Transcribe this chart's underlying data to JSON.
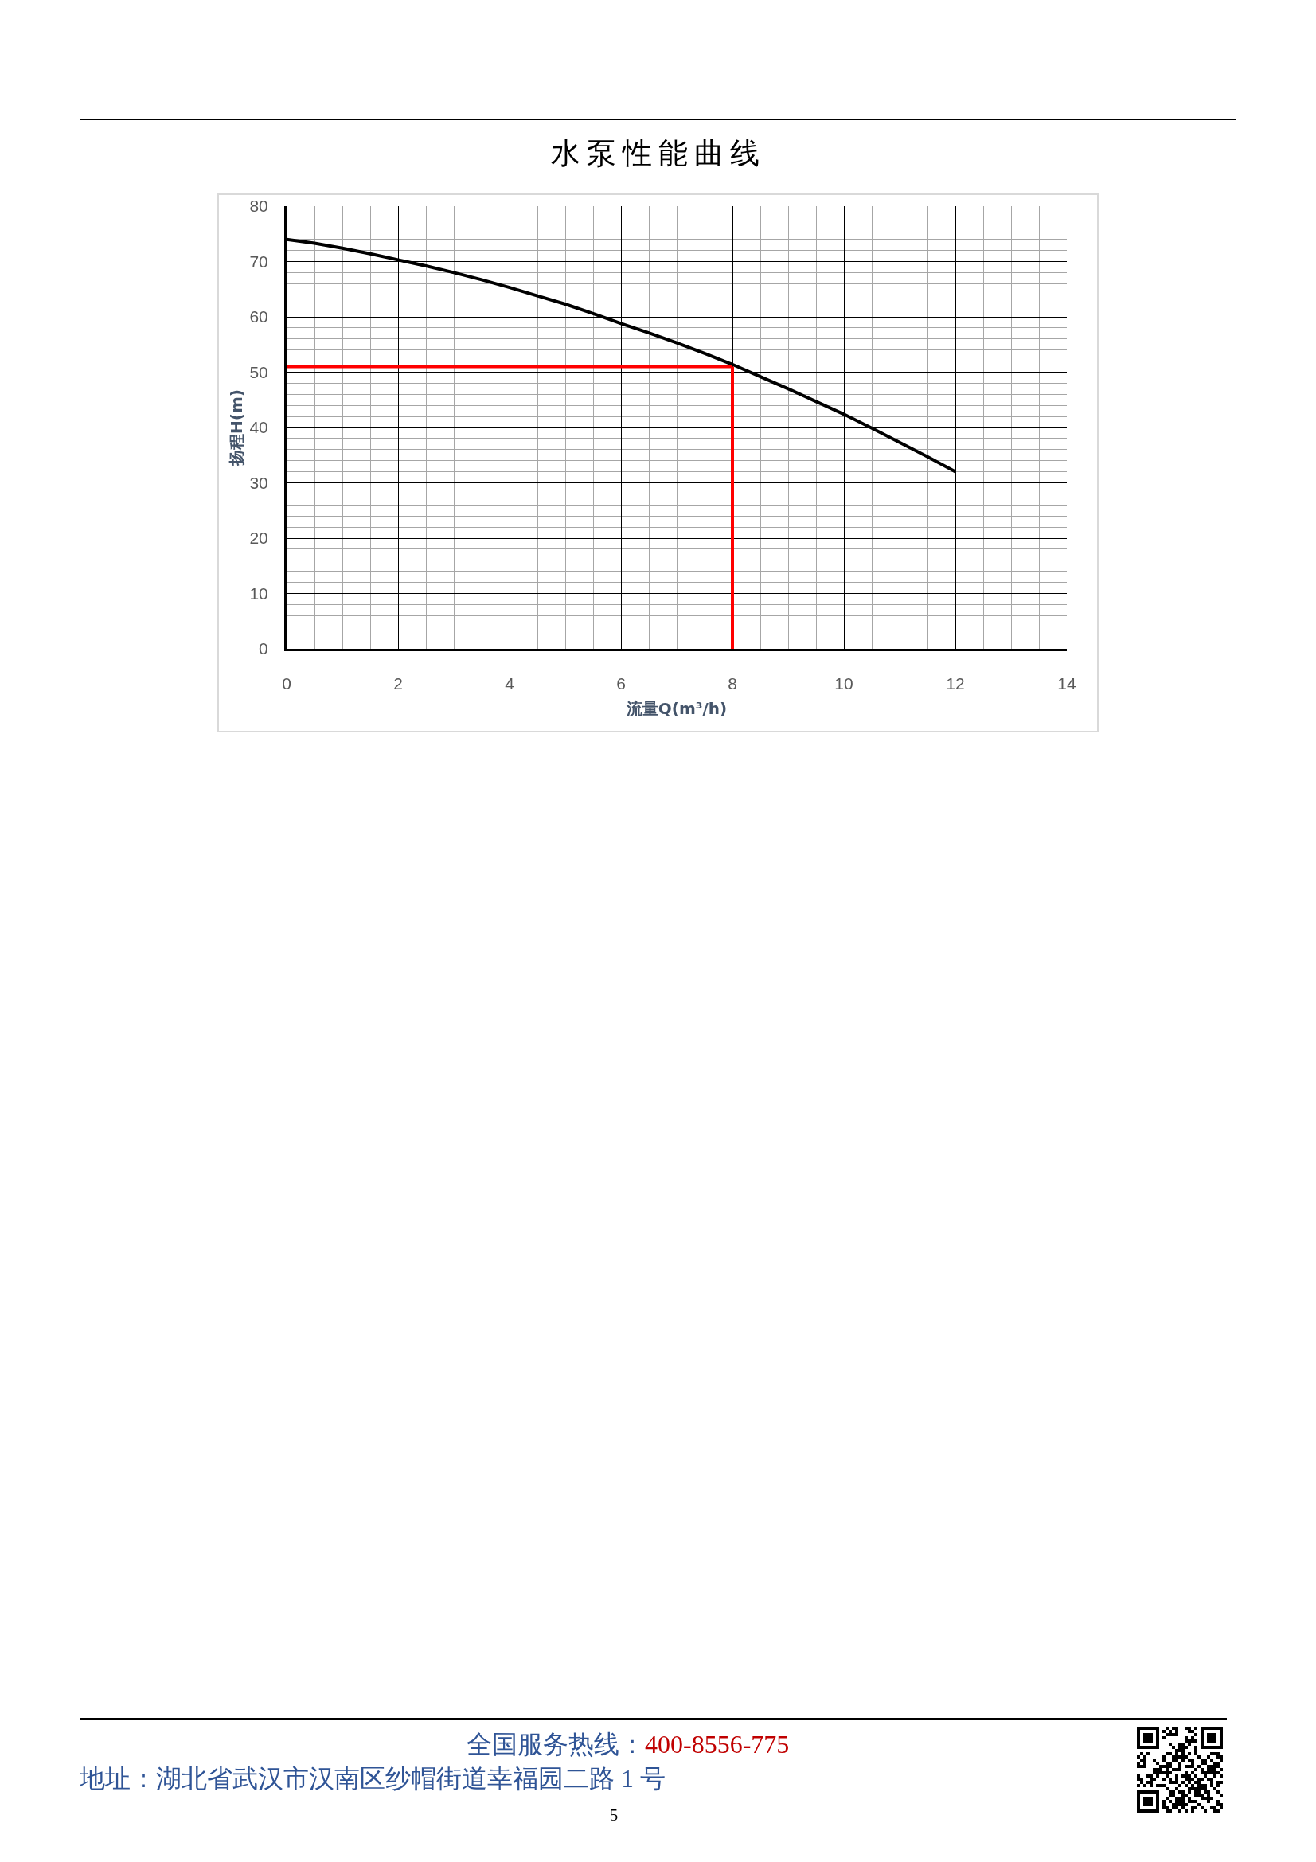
{
  "chart_data": {
    "type": "line",
    "title": "水泵性能曲线",
    "xlabel": "流量Q(m³/h)",
    "ylabel": "扬程H(m)",
    "x": [
      0,
      0.5,
      1,
      1.5,
      2,
      2.5,
      3,
      3.5,
      4,
      4.5,
      5,
      5.5,
      6,
      6.5,
      7,
      7.5,
      8,
      8.5,
      9,
      9.5,
      10,
      10.5,
      11,
      11.5,
      12
    ],
    "series": [
      {
        "color": "#000000",
        "values": [
          74.0,
          73.3,
          72.4,
          71.4,
          70.3,
          69.2,
          68.0,
          66.7,
          65.3,
          63.8,
          62.3,
          60.6,
          58.8,
          57.1,
          55.3,
          53.4,
          51.4,
          49.2,
          47.0,
          44.7,
          42.4,
          39.9,
          37.3,
          34.7,
          32.0
        ]
      }
    ],
    "ref_lines": [
      {
        "axis": "y",
        "value": 51,
        "color": "#ff0000"
      },
      {
        "axis": "x",
        "value": 8,
        "color": "#ff0000"
      }
    ],
    "xlim": [
      0,
      14
    ],
    "ylim": [
      0,
      80
    ],
    "xticks": [
      0,
      {
        "value": 0.5,
        "label": null
      },
      {
        "value": 1,
        "label": null
      },
      {
        "value": 1.5,
        "label": null
      },
      2,
      {
        "value": 2.5,
        "label": null
      },
      {
        "value": 3,
        "label": null
      },
      {
        "value": 3.5,
        "label": null
      },
      4,
      {
        "value": 4.5,
        "label": null
      },
      {
        "value": 5,
        "label": null
      },
      {
        "value": 5.5,
        "label": null
      },
      6,
      {
        "value": 6.5,
        "label": null
      },
      {
        "value": 7,
        "label": null
      },
      {
        "value": 7.5,
        "label": null
      },
      8,
      {
        "value": 8.5,
        "label": null
      },
      {
        "value": 9,
        "label": null
      },
      {
        "value": 9.5,
        "label": null
      },
      10,
      {
        "value": 10.5,
        "label": null
      },
      {
        "value": 11,
        "label": null
      },
      {
        "value": 11.5,
        "label": null
      },
      12,
      {
        "value": 12.5,
        "label": null
      },
      {
        "value": 13,
        "label": null
      },
      {
        "value": 13.5,
        "label": null
      },
      14
    ],
    "yticks": [
      0,
      {
        "value": 2,
        "label": null
      },
      {
        "value": 4,
        "label": null
      },
      {
        "value": 6,
        "label": null
      },
      {
        "value": 8,
        "label": null
      },
      10,
      {
        "value": 12,
        "label": null
      },
      {
        "value": 14,
        "label": null
      },
      {
        "value": 16,
        "label": null
      },
      {
        "value": 18,
        "label": null
      },
      20,
      {
        "value": 22,
        "label": null
      },
      {
        "value": 24,
        "label": null
      },
      {
        "value": 26,
        "label": null
      },
      {
        "value": 28,
        "label": null
      },
      30,
      {
        "value": 32,
        "label": null
      },
      {
        "value": 34,
        "label": null
      },
      {
        "value": 36,
        "label": null
      },
      {
        "value": 38,
        "label": null
      },
      40,
      {
        "value": 42,
        "label": null
      },
      {
        "value": 44,
        "label": null
      },
      {
        "value": 46,
        "label": null
      },
      {
        "value": 48,
        "label": null
      },
      50,
      {
        "value": 52,
        "label": null
      },
      {
        "value": 54,
        "label": null
      },
      {
        "value": 56,
        "label": null
      },
      {
        "value": 58,
        "label": null
      },
      60,
      {
        "value": 62,
        "label": null
      },
      {
        "value": 64,
        "label": null
      },
      {
        "value": 66,
        "label": null
      },
      {
        "value": 68,
        "label": null
      },
      70,
      {
        "value": 72,
        "label": null
      },
      {
        "value": 74,
        "label": null
      },
      {
        "value": 76,
        "label": null
      },
      {
        "value": 78,
        "label": null
      },
      80
    ],
    "grid": true,
    "annotations": [
      "全国服务热线：",
      "400-8556-775",
      "地址：湖北省武汉市汉南区纱帽街道幸福园二路 1 号",
      "5"
    ]
  }
}
